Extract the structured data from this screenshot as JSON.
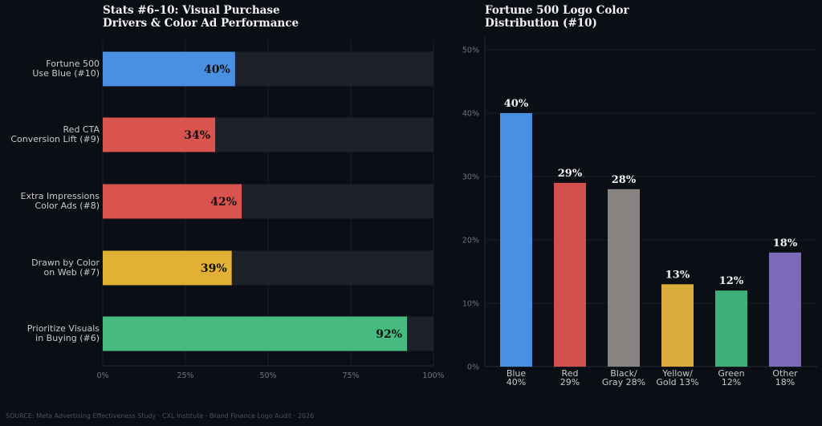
{
  "source": "SOURCE: Meta Advertising Effectiveness Study · CXL Institute · Brand Finance Logo Audit · 2026",
  "chart_data": [
    {
      "type": "bar",
      "orientation": "horizontal",
      "title": "Stats #6–10: Visual Purchase\nDrivers & Color Ad Performance",
      "categories": [
        "Fortune 500\nUse Blue (#10)",
        "Red CTA\nConversion Lift (#9)",
        "Extra Impressions\nColor Ads (#8)",
        "Drawn by Color\non Web (#7)",
        "Prioritize Visuals\nin Buying (#6)"
      ],
      "values": [
        40,
        34,
        42,
        39,
        92
      ],
      "value_labels": [
        "40%",
        "34%",
        "42%",
        "39%",
        "92%"
      ],
      "colors": [
        "#4a90e2",
        "#d9534f",
        "#d9534f",
        "#e1b034",
        "#47bb7f"
      ],
      "background_bar_color": "#1d212a",
      "xlim": [
        0,
        100
      ],
      "xticks": [
        "0%",
        "25%",
        "50%",
        "75%",
        "100%"
      ],
      "grid": true
    },
    {
      "type": "bar",
      "orientation": "vertical",
      "title": "Fortune 500 Logo Color\nDistribution (#10)",
      "categories": [
        "Blue\n40%",
        "Red\n29%",
        "Black/\nGray 28%",
        "Yellow/\nGold 13%",
        "Green\n12%",
        "Other\n18%"
      ],
      "values": [
        40,
        29,
        28,
        13,
        12,
        18
      ],
      "value_labels": [
        "40%",
        "29%",
        "28%",
        "13%",
        "12%",
        "18%"
      ],
      "colors": [
        "#4a90e2",
        "#d24f4d",
        "#878380",
        "#d8ab3a",
        "#40b07a",
        "#7a6ab8"
      ],
      "ylim": [
        0,
        50
      ],
      "yticks": [
        "0%",
        "10%",
        "20%",
        "30%",
        "40%",
        "50%"
      ],
      "grid": true
    }
  ]
}
